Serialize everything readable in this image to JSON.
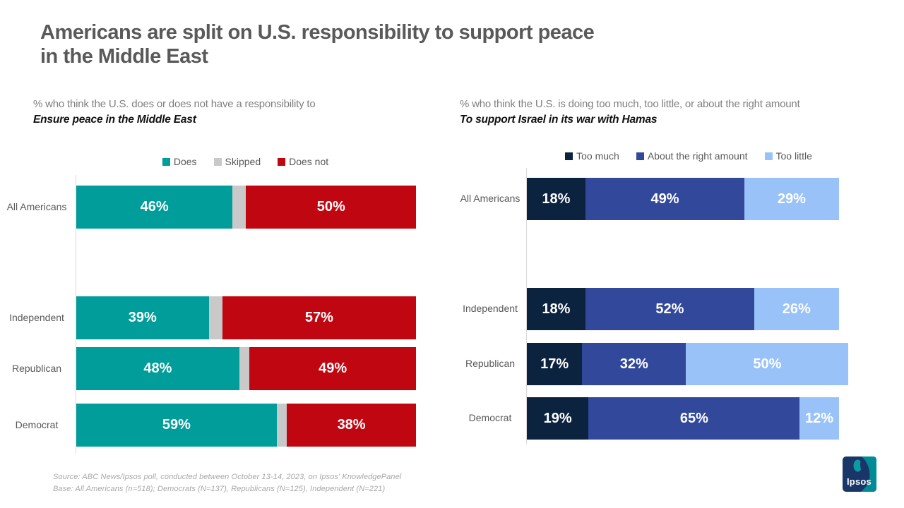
{
  "title": {
    "line1": "Americans are split on U.S. responsibility to support peace",
    "line2": "in the Middle East"
  },
  "source": {
    "line1": "Source: ABC News/Ipsos poll, conducted between October 13-14, 2023, on Ipsos' KnowledgePanel",
    "line2": "Base: All Americans (n=518); Democrats (N=137), Republicans (N=125), Independent (N=221)"
  },
  "logo": {
    "label": "Ipsos",
    "navy": "#1A3668",
    "teal": "#008B96"
  },
  "chart_data": [
    {
      "id": "us-responsibility-ensure-peace",
      "type": "bar",
      "stacked": true,
      "orientation": "horizontal",
      "subtitle_plain": "% who think the U.S. does or does not have a responsibility to",
      "subtitle_emphasis": "Ensure peace in the Middle East",
      "categories": [
        "All Americans",
        "Independent",
        "Republican",
        "Democrat"
      ],
      "series": [
        {
          "name": "Does",
          "color": "#009D9B",
          "values": [
            46,
            39,
            48,
            59
          ],
          "show_labels": true
        },
        {
          "name": "Skipped",
          "color": "#C9C9C9",
          "values": [
            4,
            4,
            3,
            3
          ],
          "show_labels": false
        },
        {
          "name": "Does not",
          "color": "#C00711",
          "values": [
            50,
            57,
            49,
            38
          ],
          "show_labels": true
        }
      ],
      "value_suffix": "%",
      "xlim": [
        0,
        100
      ],
      "grid": false,
      "legend_position": "top"
    },
    {
      "id": "us-support-israel-war-hamas",
      "type": "bar",
      "stacked": true,
      "orientation": "horizontal",
      "subtitle_plain": "% who think the U.S. is doing too much, too little, or about the right amount",
      "subtitle_emphasis": "To support Israel in its war with Hamas",
      "categories": [
        "All Americans",
        "Independent",
        "Republican",
        "Democrat"
      ],
      "series": [
        {
          "name": "Too much",
          "color": "#0C2340",
          "values": [
            18,
            18,
            17,
            19
          ],
          "show_labels": true
        },
        {
          "name": "About the right amount",
          "color": "#32489B",
          "values": [
            49,
            52,
            32,
            65
          ],
          "show_labels": true
        },
        {
          "name": "Too little",
          "color": "#99C2F8",
          "values": [
            29,
            26,
            50,
            12
          ],
          "show_labels": true
        }
      ],
      "value_suffix": "%",
      "xlim": [
        0,
        100
      ],
      "grid": false,
      "legend_position": "top"
    }
  ]
}
